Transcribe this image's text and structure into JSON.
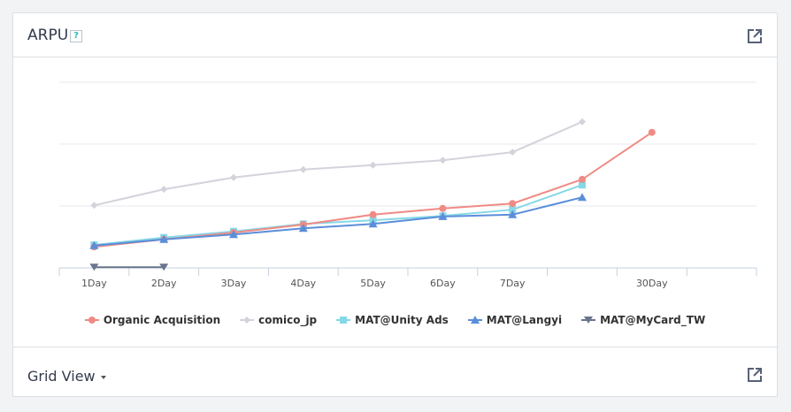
{
  "header": {
    "title": "ARPU",
    "help_icon": "?",
    "expand_icon": "external-link-icon"
  },
  "footer": {
    "view_label": "Grid View",
    "expand_icon": "external-link-icon"
  },
  "colors": {
    "organic": "#f08a84",
    "comico": "#d3d3dc",
    "unity": "#86d8e6",
    "langyi": "#5b8ed9",
    "mycard": "#69758c"
  },
  "chart_data": {
    "type": "line",
    "title": "ARPU",
    "xlabel": "",
    "ylabel": "",
    "categories": [
      "1Day",
      "2Day",
      "3Day",
      "4Day",
      "5Day",
      "6Day",
      "7Day",
      "",
      "30Day",
      ""
    ],
    "ylim": [
      0,
      3
    ],
    "grid": true,
    "y_tick_labels_visible": false,
    "legend_position": "bottom",
    "series": [
      {
        "name": "Organic Acquisition",
        "marker": "circle",
        "values": [
          0.34,
          0.46,
          0.57,
          0.7,
          0.86,
          0.96,
          1.04,
          1.43,
          2.19,
          null
        ]
      },
      {
        "name": "comico_jp",
        "marker": "diamond",
        "values": [
          1.01,
          1.27,
          1.46,
          1.59,
          1.66,
          1.74,
          1.87,
          2.36,
          null,
          null
        ]
      },
      {
        "name": "MAT@Unity Ads",
        "marker": "square",
        "values": [
          0.37,
          0.49,
          0.59,
          0.71,
          0.77,
          0.84,
          0.94,
          1.34,
          null,
          null
        ]
      },
      {
        "name": "MAT@Langyi",
        "marker": "triangle",
        "values": [
          0.36,
          0.46,
          0.54,
          0.64,
          0.71,
          0.83,
          0.86,
          1.14,
          null,
          null
        ]
      },
      {
        "name": "MAT@MyCard_TW",
        "marker": "triangle-down",
        "values": [
          0.01,
          0.01,
          null,
          null,
          null,
          null,
          null,
          null,
          null,
          null
        ]
      }
    ]
  }
}
